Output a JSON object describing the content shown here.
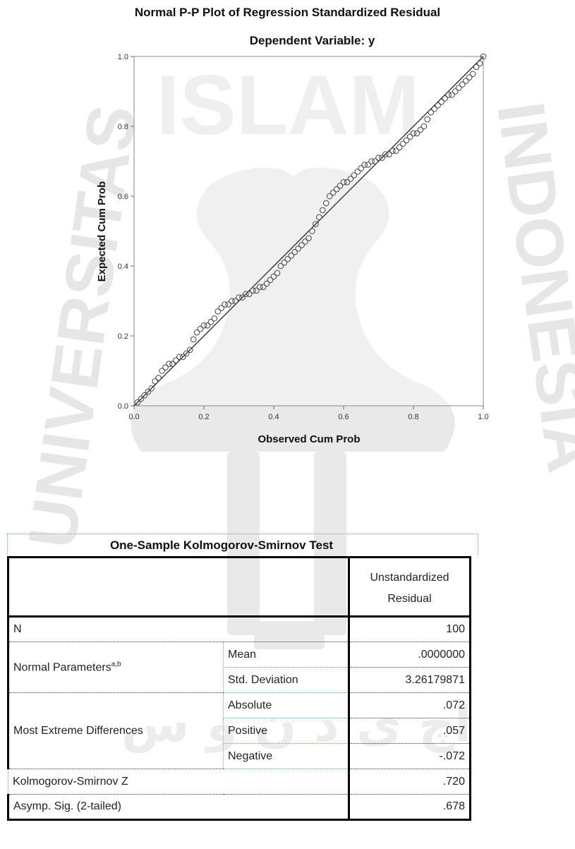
{
  "chart_data": {
    "type": "scatter",
    "title": "Normal P-P Plot of Regression Standardized Residual",
    "subtitle": "Dependent Variable: y",
    "xlabel": "Observed Cum Prob",
    "ylabel": "Expected Cum Prob",
    "xlim": [
      0.0,
      1.0
    ],
    "ylim": [
      0.0,
      1.0
    ],
    "xticks": [
      "0.0",
      "0.2",
      "0.4",
      "0.6",
      "0.8",
      "1.0"
    ],
    "yticks": [
      "0.0",
      "0.2",
      "0.4",
      "0.6",
      "0.8",
      "1.0"
    ],
    "reference_line": [
      [
        0,
        0
      ],
      [
        1,
        1
      ]
    ],
    "points": [
      [
        0.01,
        0.01
      ],
      [
        0.02,
        0.02
      ],
      [
        0.03,
        0.03
      ],
      [
        0.04,
        0.04
      ],
      [
        0.05,
        0.05
      ],
      [
        0.06,
        0.07
      ],
      [
        0.07,
        0.08
      ],
      [
        0.08,
        0.1
      ],
      [
        0.09,
        0.11
      ],
      [
        0.1,
        0.12
      ],
      [
        0.11,
        0.12
      ],
      [
        0.12,
        0.13
      ],
      [
        0.13,
        0.14
      ],
      [
        0.14,
        0.14
      ],
      [
        0.15,
        0.15
      ],
      [
        0.16,
        0.16
      ],
      [
        0.17,
        0.19
      ],
      [
        0.18,
        0.21
      ],
      [
        0.19,
        0.22
      ],
      [
        0.2,
        0.23
      ],
      [
        0.21,
        0.23
      ],
      [
        0.22,
        0.24
      ],
      [
        0.23,
        0.25
      ],
      [
        0.24,
        0.27
      ],
      [
        0.25,
        0.28
      ],
      [
        0.26,
        0.29
      ],
      [
        0.27,
        0.29
      ],
      [
        0.28,
        0.3
      ],
      [
        0.29,
        0.3
      ],
      [
        0.3,
        0.31
      ],
      [
        0.31,
        0.31
      ],
      [
        0.32,
        0.32
      ],
      [
        0.33,
        0.32
      ],
      [
        0.34,
        0.33
      ],
      [
        0.35,
        0.33
      ],
      [
        0.36,
        0.34
      ],
      [
        0.37,
        0.34
      ],
      [
        0.38,
        0.35
      ],
      [
        0.39,
        0.36
      ],
      [
        0.4,
        0.37
      ],
      [
        0.41,
        0.38
      ],
      [
        0.42,
        0.4
      ],
      [
        0.43,
        0.41
      ],
      [
        0.44,
        0.42
      ],
      [
        0.45,
        0.43
      ],
      [
        0.46,
        0.44
      ],
      [
        0.47,
        0.45
      ],
      [
        0.48,
        0.46
      ],
      [
        0.49,
        0.47
      ],
      [
        0.5,
        0.48
      ],
      [
        0.51,
        0.5
      ],
      [
        0.52,
        0.52
      ],
      [
        0.53,
        0.54
      ],
      [
        0.54,
        0.56
      ],
      [
        0.55,
        0.58
      ],
      [
        0.56,
        0.6
      ],
      [
        0.57,
        0.61
      ],
      [
        0.58,
        0.62
      ],
      [
        0.59,
        0.63
      ],
      [
        0.6,
        0.64
      ],
      [
        0.61,
        0.64
      ],
      [
        0.62,
        0.65
      ],
      [
        0.63,
        0.66
      ],
      [
        0.64,
        0.67
      ],
      [
        0.65,
        0.68
      ],
      [
        0.66,
        0.69
      ],
      [
        0.67,
        0.69
      ],
      [
        0.68,
        0.7
      ],
      [
        0.69,
        0.7
      ],
      [
        0.7,
        0.71
      ],
      [
        0.71,
        0.71
      ],
      [
        0.72,
        0.72
      ],
      [
        0.73,
        0.72
      ],
      [
        0.74,
        0.73
      ],
      [
        0.75,
        0.73
      ],
      [
        0.76,
        0.74
      ],
      [
        0.77,
        0.75
      ],
      [
        0.78,
        0.76
      ],
      [
        0.79,
        0.77
      ],
      [
        0.8,
        0.78
      ],
      [
        0.81,
        0.78
      ],
      [
        0.82,
        0.79
      ],
      [
        0.83,
        0.8
      ],
      [
        0.84,
        0.82
      ],
      [
        0.85,
        0.84
      ],
      [
        0.86,
        0.85
      ],
      [
        0.87,
        0.86
      ],
      [
        0.88,
        0.87
      ],
      [
        0.89,
        0.88
      ],
      [
        0.9,
        0.89
      ],
      [
        0.91,
        0.89
      ],
      [
        0.92,
        0.9
      ],
      [
        0.93,
        0.91
      ],
      [
        0.94,
        0.92
      ],
      [
        0.95,
        0.93
      ],
      [
        0.96,
        0.94
      ],
      [
        0.97,
        0.95
      ],
      [
        0.98,
        0.97
      ],
      [
        0.99,
        0.98
      ],
      [
        1.0,
        1.0
      ]
    ],
    "grid": false,
    "legend": "none"
  },
  "ks_test": {
    "title": "One-Sample Kolmogorov-Smirnov Test",
    "column_header_line1": "Unstandardized",
    "column_header_line2": "Residual",
    "rows": {
      "n_label": "N",
      "n_value": "100",
      "normal_params_label": "Normal Parameters",
      "normal_params_sup": "a,b",
      "mean_label": "Mean",
      "mean_value": ".0000000",
      "std_label": "Std. Deviation",
      "std_value": "3.26179871",
      "med_label": "Most Extreme Differences",
      "abs_label": "Absolute",
      "abs_value": ".072",
      "pos_label": "Positive",
      "pos_value": ".057",
      "neg_label": "Negative",
      "neg_value": "-.072",
      "ksz_label": "Kolmogorov-Smirnov Z",
      "ksz_value": ".720",
      "asymp_label": "Asymp. Sig. (2-tailed)",
      "asymp_value": ".678"
    }
  },
  "watermark": {
    "text_top": "ISLAM",
    "text_left": "UNIVERSITAS",
    "text_right": "INDONESIA",
    "color": "#e6e6e6"
  },
  "colors": {
    "plot_bg": "#ffffff",
    "marker": "#444444",
    "line": "#222222",
    "frame": "#888888"
  }
}
